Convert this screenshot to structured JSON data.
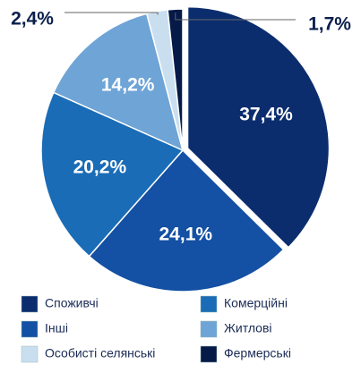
{
  "chart_data": {
    "type": "pie",
    "categories": [
      "Споживчі",
      "Інші",
      "Комерційні",
      "Житлові",
      "Особисті селянські",
      "Фермерські"
    ],
    "values": [
      37.4,
      24.1,
      20.2,
      14.2,
      2.4,
      1.7
    ],
    "value_labels": [
      "37,4%",
      "24,1%",
      "20,2%",
      "14,2%",
      "2,4%",
      "1,7%"
    ],
    "colors": [
      "#0b2d6e",
      "#1450a3",
      "#1a6cb6",
      "#6ea4d6",
      "#c9dff0",
      "#061a48"
    ]
  }
}
